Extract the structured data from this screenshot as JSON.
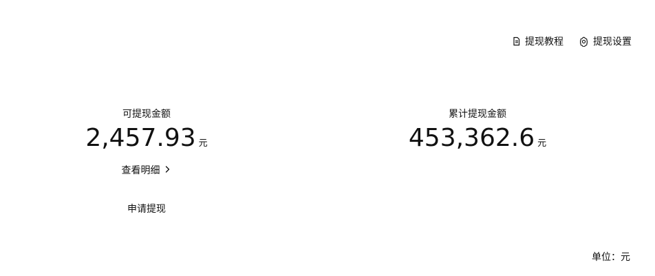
{
  "header_links": {
    "tutorial_label": "提现教程",
    "settings_label": "提现设置"
  },
  "available": {
    "label": "可提现金额",
    "amount": "2,457.93",
    "unit": "元",
    "detail_link": "查看明细"
  },
  "total": {
    "label": "累计提现金额",
    "amount": "453,362.6",
    "unit": "元"
  },
  "actions": {
    "withdraw_label": "申请提现"
  },
  "footer": {
    "unit_note": "单位：元"
  },
  "icons": {
    "tutorial": "document-icon",
    "settings": "gear-icon",
    "detail": "chevron-right-icon"
  }
}
